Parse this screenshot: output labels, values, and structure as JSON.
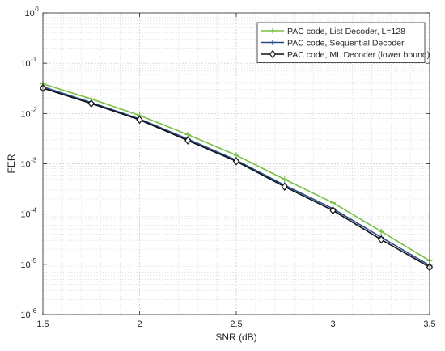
{
  "chart_data": {
    "type": "line",
    "title": "",
    "xlabel": "SNR (dB)",
    "ylabel": "FER",
    "xlim": [
      1.5,
      3.5
    ],
    "ylim": [
      1e-06,
      1
    ],
    "yscale": "log",
    "grid": true,
    "minor_grid": true,
    "legend_position": "top-right",
    "x_ticks": [
      {
        "value": 1.5,
        "label": "1.5"
      },
      {
        "value": 2,
        "label": "2"
      },
      {
        "value": 2.5,
        "label": "2.5"
      },
      {
        "value": 3,
        "label": "3"
      },
      {
        "value": 3.5,
        "label": "3.5"
      }
    ],
    "y_ticks": [
      {
        "value": 1,
        "base": "10",
        "exp": "0"
      },
      {
        "value": 0.1,
        "base": "10",
        "exp": "-1"
      },
      {
        "value": 0.01,
        "base": "10",
        "exp": "-2"
      },
      {
        "value": 0.001,
        "base": "10",
        "exp": "-3"
      },
      {
        "value": 0.0001,
        "base": "10",
        "exp": "-4"
      },
      {
        "value": 1e-05,
        "base": "10",
        "exp": "-5"
      },
      {
        "value": 1e-06,
        "base": "10",
        "exp": "-6"
      }
    ],
    "x": [
      1.5,
      1.75,
      2,
      2.25,
      2.5,
      2.75,
      3,
      3.25,
      3.5
    ],
    "series": [
      {
        "name": "PAC code, List Decoder, L=128",
        "color": "#77c043",
        "marker": "plus",
        "values": [
          0.039,
          0.0195,
          0.0092,
          0.0038,
          0.00148,
          0.00049,
          0.000168,
          4.5e-05,
          1.18e-05
        ]
      },
      {
        "name": "PAC code, Sequential Decoder",
        "color": "#2b4c8c",
        "marker": "plus",
        "values": [
          0.034,
          0.0165,
          0.0078,
          0.0031,
          0.00118,
          0.000375,
          0.000128,
          3.45e-05,
          9.5e-06
        ]
      },
      {
        "name": "PAC code, ML Decoder (lower bound)",
        "color": "#111111",
        "marker": "diamond",
        "values": [
          0.032,
          0.0158,
          0.0075,
          0.0029,
          0.00112,
          0.00035,
          0.000118,
          3.1e-05,
          8.8e-06
        ]
      }
    ]
  }
}
